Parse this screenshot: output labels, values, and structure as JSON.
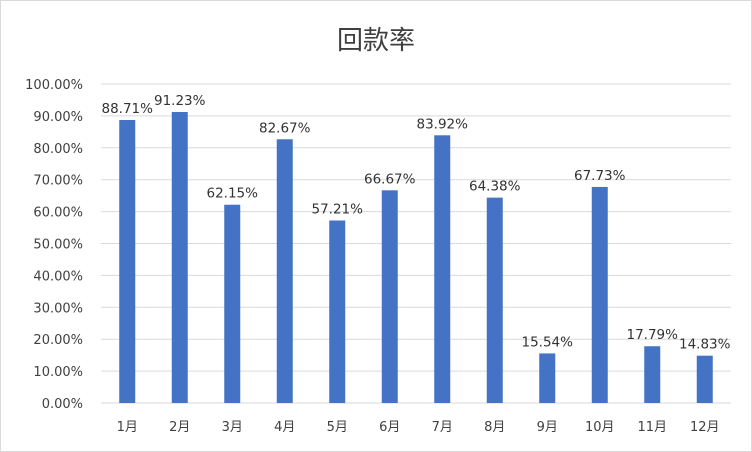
{
  "chart_data": {
    "type": "bar",
    "title": "回款率",
    "xlabel": "",
    "ylabel": "",
    "categories": [
      "1月",
      "2月",
      "3月",
      "4月",
      "5月",
      "6月",
      "7月",
      "8月",
      "9月",
      "10月",
      "11月",
      "12月"
    ],
    "values": [
      88.71,
      91.23,
      62.15,
      82.67,
      57.21,
      66.67,
      83.92,
      64.38,
      15.54,
      67.73,
      17.79,
      14.83
    ],
    "data_labels": [
      "88.71%",
      "91.23%",
      "62.15%",
      "82.67%",
      "57.21%",
      "66.67%",
      "83.92%",
      "64.38%",
      "15.54%",
      "67.73%",
      "17.79%",
      "14.83%"
    ],
    "y_ticks": [
      "0.00%",
      "10.00%",
      "20.00%",
      "30.00%",
      "40.00%",
      "50.00%",
      "60.00%",
      "70.00%",
      "80.00%",
      "90.00%",
      "100.00%"
    ],
    "ylim": [
      0,
      100
    ],
    "grid": true,
    "legend": "none",
    "bar_color": "#4472c4"
  }
}
